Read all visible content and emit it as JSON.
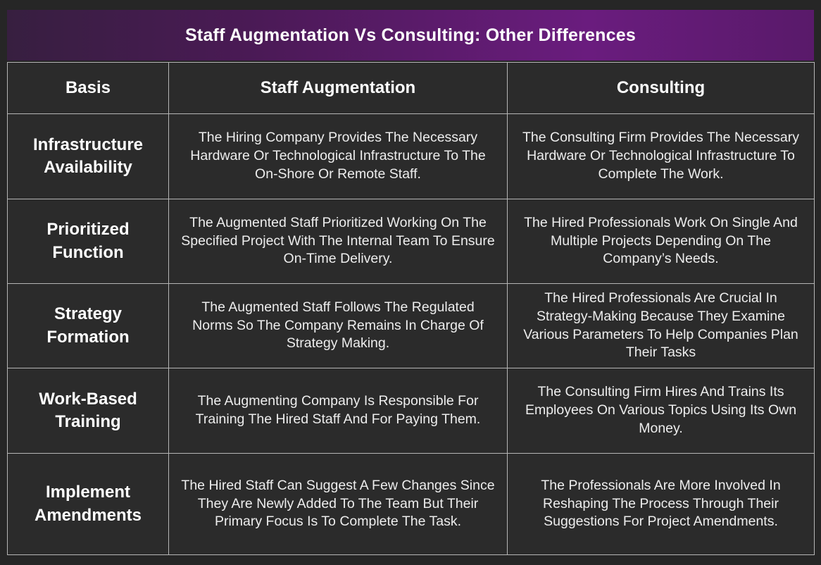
{
  "banner": {
    "title": "Staff Augmentation Vs Consulting: Other Differences"
  },
  "table": {
    "headers": [
      "Basis",
      "Staff Augmentation",
      "Consulting"
    ],
    "rows": [
      {
        "basis": "Infrastructure Availability",
        "staff_augmentation": "The Hiring Company Provides The Necessary Hardware Or Technological Infrastructure To The On-Shore Or Remote Staff.",
        "consulting": "The Consulting Firm Provides The Necessary Hardware Or Technological Infrastructure To Complete The Work."
      },
      {
        "basis": "Prioritized Function",
        "staff_augmentation": "The Augmented Staff Prioritized Working On The Specified Project With The Internal Team To Ensure On-Time Delivery.",
        "consulting": "The Hired Professionals Work On Single And Multiple Projects Depending On The Company’s Needs."
      },
      {
        "basis": "Strategy Formation",
        "staff_augmentation": "The Augmented Staff Follows The Regulated Norms So The Company Remains In Charge Of Strategy Making.",
        "consulting": "The Hired Professionals Are Crucial In Strategy-Making Because They Examine Various Parameters To Help Companies Plan Their Tasks"
      },
      {
        "basis": "Work-Based Training",
        "staff_augmentation": "The Augmenting Company Is Responsible For Training The Hired Staff And For Paying Them.",
        "consulting": "The Consulting Firm Hires And Trains Its Employees On Various Topics Using Its Own Money."
      },
      {
        "basis": "Implement Amendments",
        "staff_augmentation": "The Hired Staff Can Suggest A Few Changes Since They Are Newly Added To The Team But Their Primary Focus Is To Complete The Task.",
        "consulting": "The Professionals Are More Involved In Reshaping The Process Through Their Suggestions For Project Amendments."
      }
    ]
  },
  "colors": {
    "page_background": "#262626",
    "cell_background": "#2b2b2b",
    "border": "#b5b5b5",
    "banner_gradient_left": "#371f40",
    "banner_gradient_mid": "#6a1c7e",
    "banner_gradient_right": "#591a6a",
    "heading_text": "#ffffff",
    "body_text": "#ededed"
  }
}
